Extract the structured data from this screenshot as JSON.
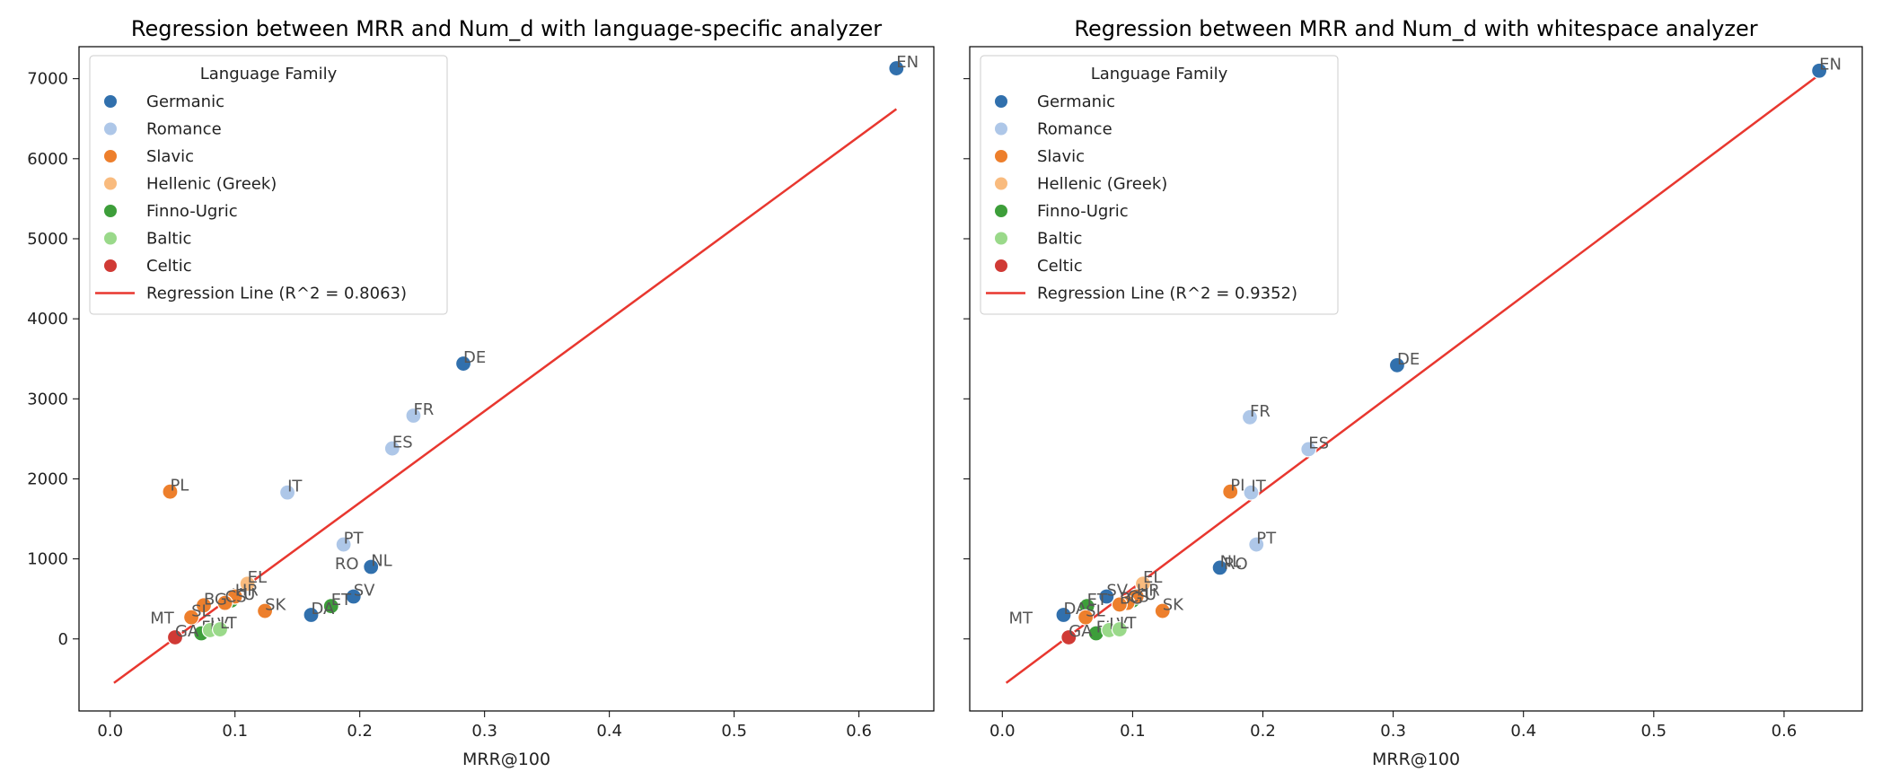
{
  "chart_data": [
    {
      "type": "scatter",
      "title": "Regression between MRR and Num_d with language-specific analyzer",
      "xlabel": "MRR@100",
      "ylabel": "",
      "xlim": [
        -0.025,
        0.66
      ],
      "ylim": [
        -900,
        7400
      ],
      "xticks": [
        0.0,
        0.1,
        0.2,
        0.3,
        0.4,
        0.5,
        0.6
      ],
      "xtick_labels": [
        "0.0",
        "0.1",
        "0.2",
        "0.3",
        "0.4",
        "0.5",
        "0.6"
      ],
      "yticks": [
        0,
        1000,
        2000,
        3000,
        4000,
        5000,
        6000,
        7000
      ],
      "ytick_labels": [
        "0",
        "1000",
        "2000",
        "3000",
        "4000",
        "5000",
        "6000",
        "7000"
      ],
      "legend_title": "Language Family",
      "legend_position": "top-left",
      "regression": {
        "label": "Regression Line (R^2 = 0.8063)",
        "x_start": 0.003,
        "y_start": -550,
        "x_end": 0.63,
        "y_end": 6620
      },
      "points": [
        {
          "label": "EN",
          "x": 0.63,
          "y": 7130,
          "family": "Germanic"
        },
        {
          "label": "DE",
          "x": 0.283,
          "y": 3440,
          "family": "Germanic"
        },
        {
          "label": "FR",
          "x": 0.243,
          "y": 2790,
          "family": "Romance"
        },
        {
          "label": "ES",
          "x": 0.226,
          "y": 2380,
          "family": "Romance"
        },
        {
          "label": "IT",
          "x": 0.142,
          "y": 1830,
          "family": "Romance"
        },
        {
          "label": "PL",
          "x": 0.048,
          "y": 1840,
          "family": "Slavic"
        },
        {
          "label": "PT",
          "x": 0.187,
          "y": 1180,
          "family": "Romance"
        },
        {
          "label": "NL",
          "x": 0.209,
          "y": 900,
          "family": "Germanic"
        },
        {
          "label": "RO",
          "x": 0.18,
          "y": 860,
          "family": "Romance"
        },
        {
          "label": "EL",
          "x": 0.11,
          "y": 690,
          "family": "Hellenic (Greek)"
        },
        {
          "label": "HU",
          "x": 0.097,
          "y": 480,
          "family": "Finno-Ugric"
        },
        {
          "label": "HR",
          "x": 0.1,
          "y": 530,
          "family": "Slavic"
        },
        {
          "label": "CS",
          "x": 0.092,
          "y": 450,
          "family": "Slavic"
        },
        {
          "label": "BG",
          "x": 0.075,
          "y": 420,
          "family": "Slavic"
        },
        {
          "label": "SK",
          "x": 0.124,
          "y": 350,
          "family": "Slavic"
        },
        {
          "label": "SV",
          "x": 0.195,
          "y": 530,
          "family": "Germanic"
        },
        {
          "label": "ET",
          "x": 0.177,
          "y": 410,
          "family": "Finno-Ugric"
        },
        {
          "label": "DA",
          "x": 0.161,
          "y": 300,
          "family": "Germanic"
        },
        {
          "label": "SL",
          "x": 0.065,
          "y": 270,
          "family": "Slavic"
        },
        {
          "label": "MT",
          "x": 0.032,
          "y": 180,
          "family": "Romance"
        },
        {
          "label": "FI",
          "x": 0.073,
          "y": 70,
          "family": "Finno-Ugric"
        },
        {
          "label": "LV",
          "x": 0.08,
          "y": 110,
          "family": "Baltic"
        },
        {
          "label": "LT",
          "x": 0.088,
          "y": 120,
          "family": "Baltic"
        },
        {
          "label": "GA",
          "x": 0.052,
          "y": 20,
          "family": "Celtic"
        }
      ]
    },
    {
      "type": "scatter",
      "title": "Regression between MRR and Num_d with whitespace analyzer",
      "xlabel": "MRR@100",
      "ylabel": "",
      "xlim": [
        -0.025,
        0.66
      ],
      "ylim": [
        -900,
        7400
      ],
      "xticks": [
        0.0,
        0.1,
        0.2,
        0.3,
        0.4,
        0.5,
        0.6
      ],
      "xtick_labels": [
        "0.0",
        "0.1",
        "0.2",
        "0.3",
        "0.4",
        "0.5",
        "0.6"
      ],
      "yticks": [
        0,
        1000,
        2000,
        3000,
        4000,
        5000,
        6000,
        7000
      ],
      "ytick_labels": [],
      "legend_title": "Language Family",
      "legend_position": "top-left",
      "regression": {
        "label": "Regression Line (R^2 = 0.9352)",
        "x_start": 0.003,
        "y_start": -550,
        "x_end": 0.627,
        "y_end": 7050
      },
      "points": [
        {
          "label": "EN",
          "x": 0.627,
          "y": 7100,
          "family": "Germanic"
        },
        {
          "label": "DE",
          "x": 0.303,
          "y": 3420,
          "family": "Germanic"
        },
        {
          "label": "FR",
          "x": 0.19,
          "y": 2770,
          "family": "Romance"
        },
        {
          "label": "ES",
          "x": 0.235,
          "y": 2370,
          "family": "Romance"
        },
        {
          "label": "PL",
          "x": 0.175,
          "y": 1840,
          "family": "Slavic"
        },
        {
          "label": "IT",
          "x": 0.191,
          "y": 1830,
          "family": "Romance"
        },
        {
          "label": "PT",
          "x": 0.195,
          "y": 1180,
          "family": "Romance"
        },
        {
          "label": "NL",
          "x": 0.167,
          "y": 890,
          "family": "Germanic"
        },
        {
          "label": "RO",
          "x": 0.17,
          "y": 860,
          "family": "Romance"
        },
        {
          "label": "EL",
          "x": 0.108,
          "y": 690,
          "family": "Hellenic (Greek)"
        },
        {
          "label": "HU",
          "x": 0.1,
          "y": 480,
          "family": "Finno-Ugric"
        },
        {
          "label": "HR",
          "x": 0.103,
          "y": 530,
          "family": "Slavic"
        },
        {
          "label": "CS",
          "x": 0.096,
          "y": 450,
          "family": "Slavic"
        },
        {
          "label": "BG",
          "x": 0.09,
          "y": 430,
          "family": "Slavic"
        },
        {
          "label": "SV",
          "x": 0.08,
          "y": 530,
          "family": "Germanic"
        },
        {
          "label": "SK",
          "x": 0.123,
          "y": 350,
          "family": "Slavic"
        },
        {
          "label": "ET",
          "x": 0.065,
          "y": 410,
          "family": "Finno-Ugric"
        },
        {
          "label": "DA",
          "x": 0.047,
          "y": 300,
          "family": "Germanic"
        },
        {
          "label": "SL",
          "x": 0.064,
          "y": 270,
          "family": "Slavic"
        },
        {
          "label": "MT",
          "x": 0.005,
          "y": 180,
          "family": "Romance"
        },
        {
          "label": "FI",
          "x": 0.072,
          "y": 70,
          "family": "Finno-Ugric"
        },
        {
          "label": "LV",
          "x": 0.082,
          "y": 110,
          "family": "Baltic"
        },
        {
          "label": "LT",
          "x": 0.09,
          "y": 120,
          "family": "Baltic"
        },
        {
          "label": "GA",
          "x": 0.051,
          "y": 20,
          "family": "Celtic"
        }
      ]
    }
  ],
  "families": [
    {
      "name": "Germanic",
      "color": "#3170ad"
    },
    {
      "name": "Romance",
      "color": "#aec7e8"
    },
    {
      "name": "Slavic",
      "color": "#ed7f2c"
    },
    {
      "name": "Hellenic (Greek)",
      "color": "#f9bb7e"
    },
    {
      "name": "Finno-Ugric",
      "color": "#3d9e3a"
    },
    {
      "name": "Baltic",
      "color": "#9ad98a"
    },
    {
      "name": "Celtic",
      "color": "#d03a35"
    }
  ],
  "regression_color": "#e8372f",
  "hidden_marker_labels": [
    "MT",
    "RO"
  ]
}
